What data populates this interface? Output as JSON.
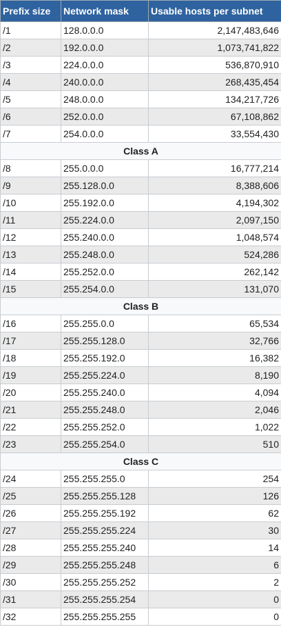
{
  "headers": [
    "Prefix size",
    "Network mask",
    "Usable hosts per subnet"
  ],
  "rows": [
    {
      "prefix": "/1",
      "mask": "128.0.0.0",
      "hosts": "2,147,483,646"
    },
    {
      "prefix": "/2",
      "mask": "192.0.0.0",
      "hosts": "1,073,741,822"
    },
    {
      "prefix": "/3",
      "mask": "224.0.0.0",
      "hosts": "536,870,910"
    },
    {
      "prefix": "/4",
      "mask": "240.0.0.0",
      "hosts": "268,435,454"
    },
    {
      "prefix": "/5",
      "mask": "248.0.0.0",
      "hosts": "134,217,726"
    },
    {
      "prefix": "/6",
      "mask": "252.0.0.0",
      "hosts": "67,108,862"
    },
    {
      "prefix": "/7",
      "mask": "254.0.0.0",
      "hosts": "33,554,430"
    },
    {
      "class_label": "Class A"
    },
    {
      "prefix": "/8",
      "mask": "255.0.0.0",
      "hosts": "16,777,214"
    },
    {
      "prefix": "/9",
      "mask": "255.128.0.0",
      "hosts": "8,388,606"
    },
    {
      "prefix": "/10",
      "mask": "255.192.0.0",
      "hosts": "4,194,302"
    },
    {
      "prefix": "/11",
      "mask": "255.224.0.0",
      "hosts": "2,097,150"
    },
    {
      "prefix": "/12",
      "mask": "255.240.0.0",
      "hosts": "1,048,574"
    },
    {
      "prefix": "/13",
      "mask": "255.248.0.0",
      "hosts": "524,286"
    },
    {
      "prefix": "/14",
      "mask": "255.252.0.0",
      "hosts": "262,142"
    },
    {
      "prefix": "/15",
      "mask": "255.254.0.0",
      "hosts": "131,070"
    },
    {
      "class_label": "Class B"
    },
    {
      "prefix": "/16",
      "mask": "255.255.0.0",
      "hosts": "65,534"
    },
    {
      "prefix": "/17",
      "mask": "255.255.128.0",
      "hosts": "32,766"
    },
    {
      "prefix": "/18",
      "mask": "255.255.192.0",
      "hosts": "16,382"
    },
    {
      "prefix": "/19",
      "mask": "255.255.224.0",
      "hosts": "8,190"
    },
    {
      "prefix": "/20",
      "mask": "255.255.240.0",
      "hosts": "4,094"
    },
    {
      "prefix": "/21",
      "mask": "255.255.248.0",
      "hosts": "2,046"
    },
    {
      "prefix": "/22",
      "mask": "255.255.252.0",
      "hosts": "1,022"
    },
    {
      "prefix": "/23",
      "mask": "255.255.254.0",
      "hosts": "510"
    },
    {
      "class_label": "Class C"
    },
    {
      "prefix": "/24",
      "mask": "255.255.255.0",
      "hosts": "254"
    },
    {
      "prefix": "/25",
      "mask": "255.255.255.128",
      "hosts": "126"
    },
    {
      "prefix": "/26",
      "mask": "255.255.255.192",
      "hosts": "62"
    },
    {
      "prefix": "/27",
      "mask": "255.255.255.224",
      "hosts": "30"
    },
    {
      "prefix": "/28",
      "mask": "255.255.255.240",
      "hosts": "14"
    },
    {
      "prefix": "/29",
      "mask": "255.255.255.248",
      "hosts": "6"
    },
    {
      "prefix": "/30",
      "mask": "255.255.255.252",
      "hosts": "2"
    },
    {
      "prefix": "/31",
      "mask": "255.255.255.254",
      "hosts": "0"
    },
    {
      "prefix": "/32",
      "mask": "255.255.255.255",
      "hosts": "0"
    }
  ]
}
